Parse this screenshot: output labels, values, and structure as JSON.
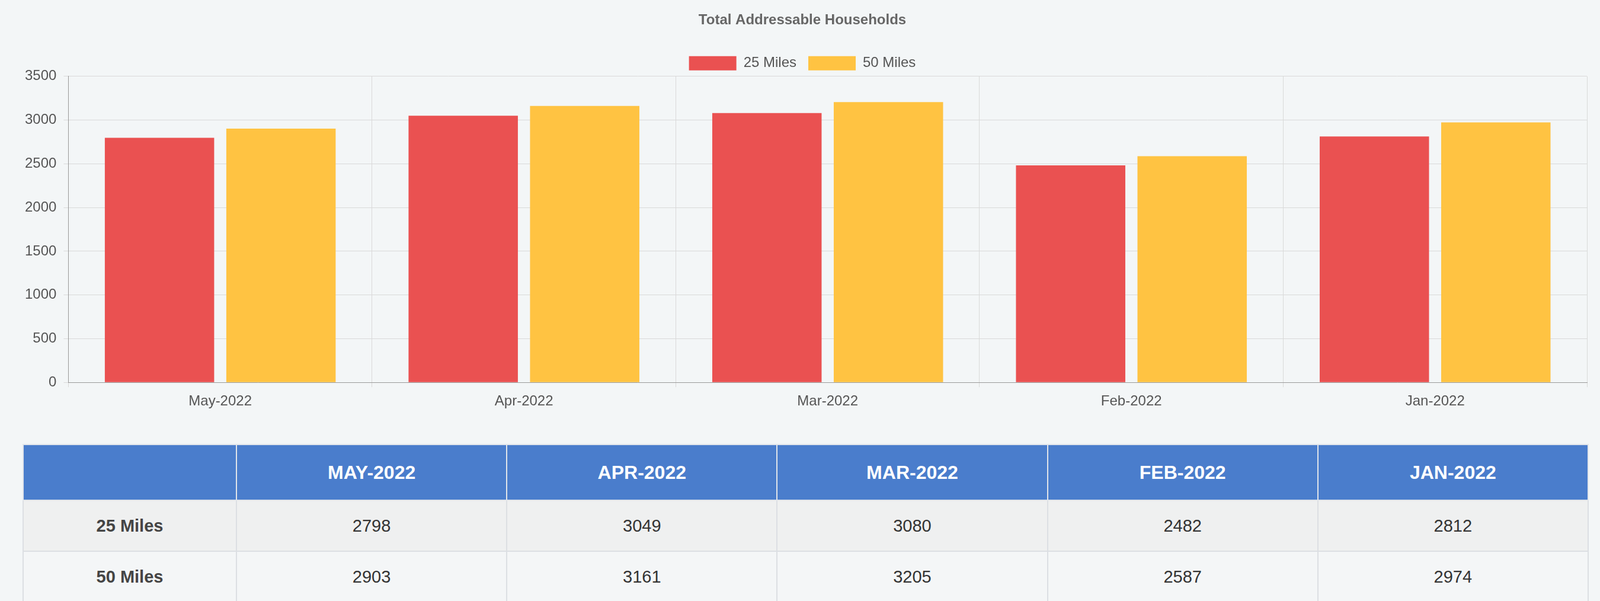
{
  "chart_data": {
    "type": "bar",
    "title": "Total Addressable Households",
    "categories": [
      "May-2022",
      "Apr-2022",
      "Mar-2022",
      "Feb-2022",
      "Jan-2022"
    ],
    "series": [
      {
        "name": "25 Miles",
        "color": "#ea5151",
        "values": [
          2798,
          3049,
          3080,
          2482,
          2812
        ]
      },
      {
        "name": "50 Miles",
        "color": "#ffc342",
        "values": [
          2903,
          3161,
          3205,
          2587,
          2974
        ]
      }
    ],
    "ylim": [
      0,
      3500
    ],
    "yticks": [
      0,
      500,
      1000,
      1500,
      2000,
      2500,
      3000,
      3500
    ],
    "grid": true,
    "legend": "top"
  },
  "table": {
    "header": [
      "MAY-2022",
      "APR-2022",
      "MAR-2022",
      "FEB-2022",
      "JAN-2022"
    ],
    "rows": [
      {
        "label": "25 Miles",
        "values": [
          2798,
          3049,
          3080,
          2482,
          2812
        ]
      },
      {
        "label": "50 Miles",
        "values": [
          2903,
          3161,
          3205,
          2587,
          2974
        ]
      }
    ]
  }
}
